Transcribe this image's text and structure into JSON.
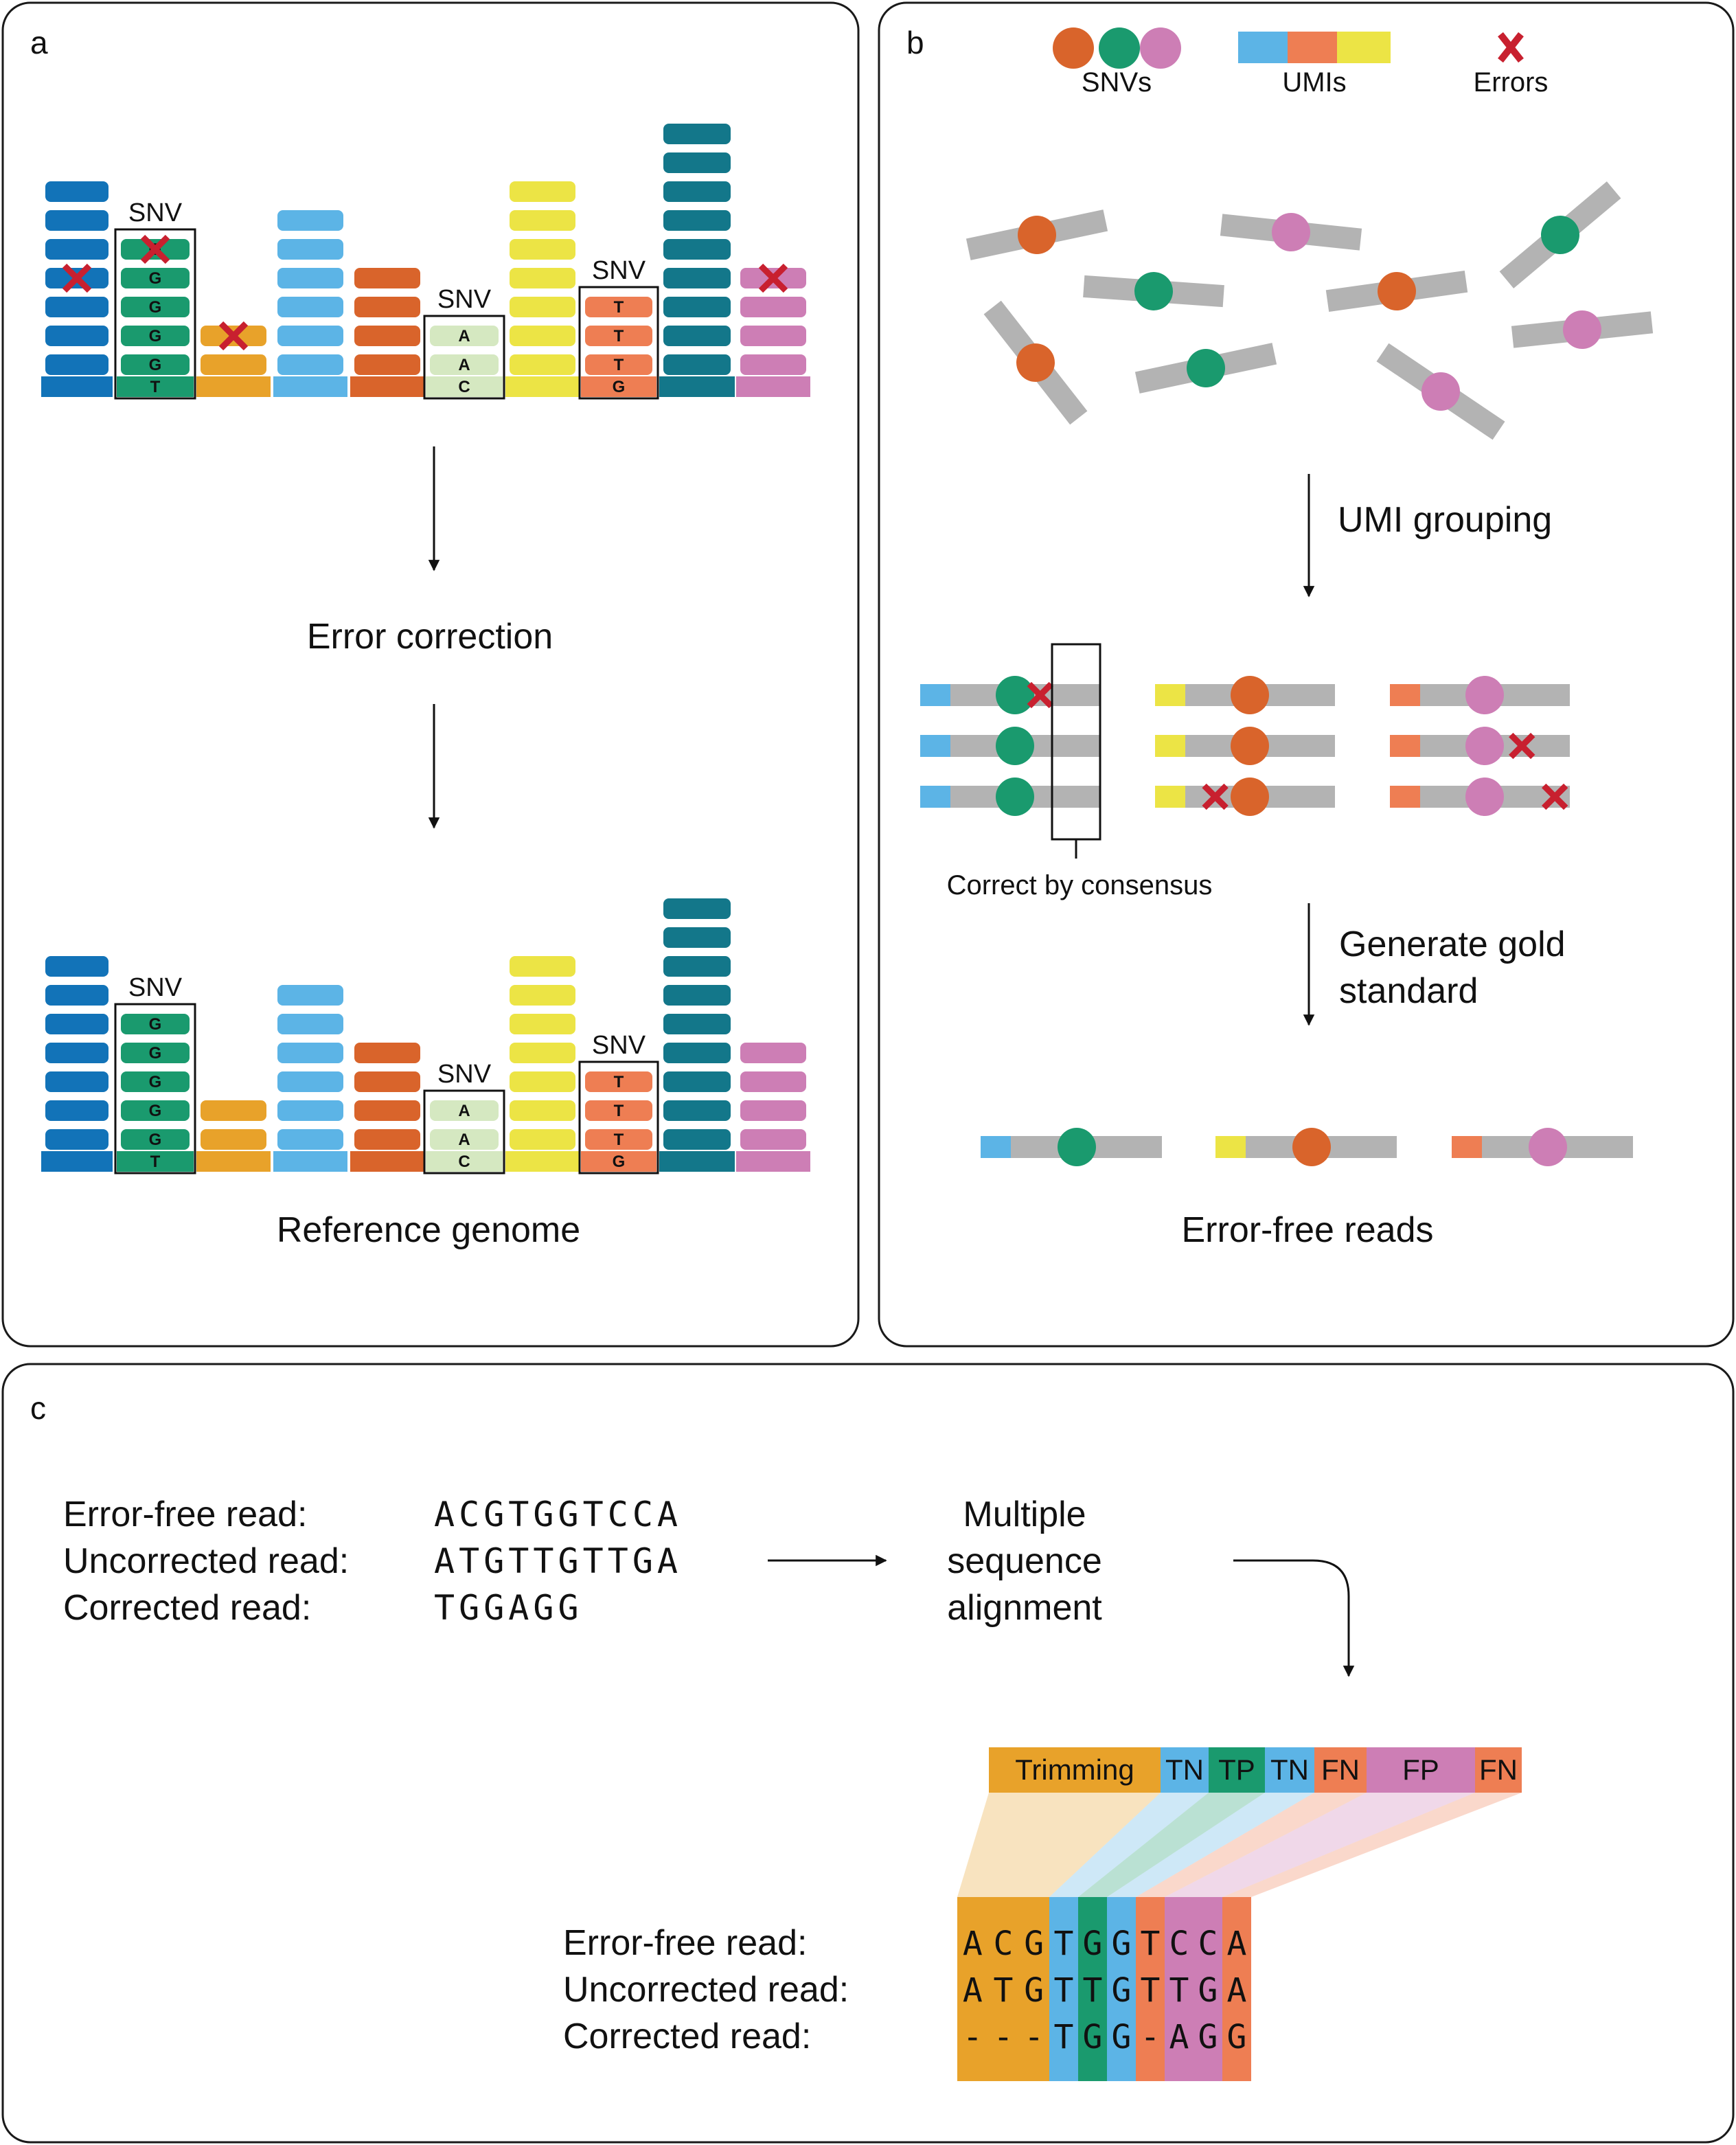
{
  "colors": {
    "blue_dark": "#1273b8",
    "green": "#1a9a6e",
    "orange_gold": "#e8a22a",
    "sky": "#5cb4e6",
    "burnt_orange": "#d9642b",
    "pale_green": "#d5e8c1",
    "yellow": "#ece445",
    "salmon": "#ee7e53",
    "teal": "#13778a",
    "pink": "#cd7eb5",
    "grey": "#b3b3b3",
    "error_red": "#c8202f",
    "panel_border": "#1a1a1a"
  },
  "panel_a": {
    "letter": "a",
    "snv_label": "SNV",
    "columns_before": [
      {
        "color": "blue_dark",
        "stack": 7,
        "errors": [
          3
        ]
      },
      {
        "color": "green",
        "stack": 5,
        "bases": [
          "G",
          "G",
          "G",
          "G",
          "G"
        ],
        "base": "T",
        "snv": true,
        "errors": [
          0
        ]
      },
      {
        "color": "orange_gold",
        "stack": 2,
        "errors": [
          0
        ]
      },
      {
        "color": "sky",
        "stack": 6
      },
      {
        "color": "burnt_orange",
        "stack": 4
      },
      {
        "color": "pale_green",
        "stack": 2,
        "bases": [
          "A",
          "A"
        ],
        "base": "C",
        "snv": true
      },
      {
        "color": "yellow",
        "stack": 7
      },
      {
        "color": "salmon",
        "stack": 3,
        "bases": [
          "T",
          "T",
          "T"
        ],
        "base": "G",
        "snv": true
      },
      {
        "color": "teal",
        "stack": 9
      },
      {
        "color": "pink",
        "stack": 4,
        "errors": [
          0
        ]
      }
    ],
    "columns_after": [
      {
        "color": "blue_dark",
        "stack": 7
      },
      {
        "color": "green",
        "stack": 5,
        "bases": [
          "G",
          "G",
          "G",
          "G",
          "G"
        ],
        "base": "T",
        "snv": true
      },
      {
        "color": "orange_gold",
        "stack": 2
      },
      {
        "color": "sky",
        "stack": 6
      },
      {
        "color": "burnt_orange",
        "stack": 4
      },
      {
        "color": "pale_green",
        "stack": 2,
        "bases": [
          "A",
          "A"
        ],
        "base": "C",
        "snv": true
      },
      {
        "color": "yellow",
        "stack": 7
      },
      {
        "color": "salmon",
        "stack": 3,
        "bases": [
          "T",
          "T",
          "T"
        ],
        "base": "G",
        "snv": true
      },
      {
        "color": "teal",
        "stack": 9
      },
      {
        "color": "pink",
        "stack": 4
      }
    ],
    "step_label": "Error correction",
    "footer_label": "Reference genome"
  },
  "panel_b": {
    "letter": "b",
    "legend": {
      "snvs_label": "SNVs",
      "umis_label": "UMIs",
      "errors_label": "Errors",
      "snv_colors": [
        "burnt_orange",
        "green",
        "pink"
      ],
      "umi_colors": [
        "sky",
        "salmon",
        "yellow"
      ]
    },
    "step1_label": "UMI grouping",
    "consensus_label": "Correct by consensus",
    "step2_label_line1": "Generate gold",
    "step2_label_line2": "standard",
    "groups": [
      {
        "umi": "sky",
        "snv": "green",
        "reads": [
          [
            0.6
          ],
          [],
          []
        ]
      },
      {
        "umi": "yellow",
        "snv": "burnt_orange",
        "reads": [
          [],
          [],
          [
            0.2
          ]
        ]
      },
      {
        "umi": "salmon",
        "snv": "pink",
        "reads": [
          [],
          [
            0.68
          ],
          [
            0.9
          ]
        ]
      }
    ],
    "footer_label": "Error-free reads"
  },
  "panel_c": {
    "letter": "c",
    "labels": {
      "error_free": "Error-free read:",
      "uncorrected": "Uncorrected read:",
      "corrected": "Corrected read:"
    },
    "seq_error_free": "ACGTGGTCCA",
    "seq_uncorrected": "ATGTTGTTGA",
    "seq_corrected": "TGGAGG",
    "msa_line1": "Multiple",
    "msa_line2": "sequence",
    "msa_line3": "alignment",
    "categories": [
      {
        "label": "Trimming",
        "color": "orange_gold",
        "cols": 3
      },
      {
        "label": "TN",
        "color": "sky",
        "cols": 1
      },
      {
        "label": "TP",
        "color": "green",
        "cols": 1
      },
      {
        "label": "TN",
        "color": "sky",
        "cols": 1
      },
      {
        "label": "FN",
        "color": "salmon",
        "cols": 1
      },
      {
        "label": "FP",
        "color": "pink",
        "cols": 2
      },
      {
        "label": "FN",
        "color": "salmon",
        "cols": 1
      }
    ],
    "aligned": {
      "error_free": [
        "A",
        "C",
        "G",
        "T",
        "G",
        "G",
        "T",
        "C",
        "C",
        "A"
      ],
      "uncorrected": [
        "A",
        "T",
        "G",
        "T",
        "T",
        "G",
        "T",
        "T",
        "G",
        "A"
      ],
      "corrected": [
        "-",
        "-",
        "-",
        "T",
        "G",
        "G",
        "-",
        "A",
        "G",
        "G"
      ]
    }
  }
}
